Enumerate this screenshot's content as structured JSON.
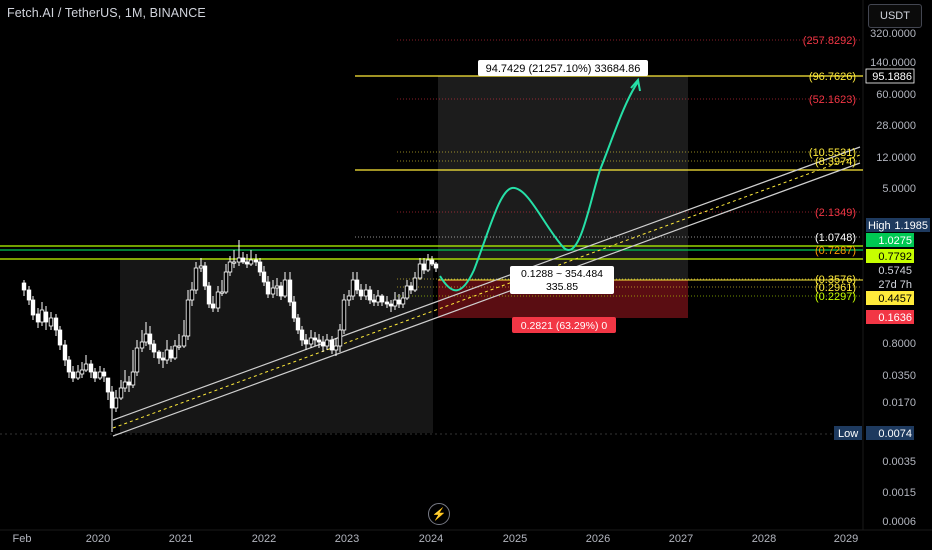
{
  "header": {
    "title": "Fetch.AI / TetherUS, 1M, BINANCE",
    "currency_button": "USDT"
  },
  "price_axis": {
    "ticks": [
      "320.0000",
      "140.0000",
      "60.0000",
      "28.0000",
      "12.0000",
      "5.0000",
      "0.8000",
      "0.0350",
      "0.0170",
      "0.0035",
      "0.0015",
      "0.0006"
    ],
    "labels": [
      {
        "text": "95.1886",
        "bg": "#000000",
        "fg": "#ffffff",
        "border": "#ffffff"
      },
      {
        "text": "High",
        "bg": "#1e3a5f",
        "fg": "#ffffff"
      },
      {
        "text": "1.1985",
        "bg": "#1e3a5f",
        "fg": "#ffffff"
      },
      {
        "text": "1.0275",
        "bg": "#00c853",
        "fg": "#ffffff"
      },
      {
        "text": "0.7792",
        "bg": "#c6ff00",
        "fg": "#000000"
      },
      {
        "text": "0.5745",
        "bg": "#000000",
        "fg": "#d1d4dc"
      },
      {
        "text": "27d 7h",
        "bg": "#000000",
        "fg": "#d1d4dc"
      },
      {
        "text": "0.4457",
        "bg": "#ffeb3b",
        "fg": "#000000"
      },
      {
        "text": "0.1636",
        "bg": "#f23645",
        "fg": "#ffffff"
      },
      {
        "text": "Low",
        "bg": "#1e3a5f",
        "fg": "#ffffff"
      },
      {
        "text": "0.0074",
        "bg": "#1e3a5f",
        "fg": "#ffffff"
      }
    ]
  },
  "time_axis": {
    "ticks": [
      "Feb",
      "2020",
      "2021",
      "2022",
      "2023",
      "2024",
      "2025",
      "2026",
      "2027",
      "2028",
      "2029"
    ]
  },
  "fib_levels": [
    {
      "text": "(257.8292)",
      "color": "#f23645"
    },
    {
      "text": "(96.7626)",
      "color": "#ffeb3b"
    },
    {
      "text": "(52.1623)",
      "color": "#f23645"
    },
    {
      "text": "(10.5531)",
      "color": "#ffeb3b"
    },
    {
      "text": "(8.3974)",
      "color": "#ffeb3b"
    },
    {
      "text": "(2.1349)",
      "color": "#f23645"
    },
    {
      "text": "(1.0748)",
      "color": "#ffffff"
    },
    {
      "text": "(0.7287)",
      "color": "#ff9800"
    },
    {
      "text": "(0.3576)",
      "color": "#ffeb3b"
    },
    {
      "text": "(0.2961)",
      "color": "#ffeb3b"
    },
    {
      "text": "(0.2297)",
      "color": "#c6ff00"
    }
  ],
  "position_tool": {
    "target_label": "94.7429 (21257.10%) 33684.86",
    "entry_label_line1": "0.1288 ~ 354.484",
    "entry_label_line2": "335.85",
    "stop_label": "0.2821 (63.29%) 0"
  },
  "colors": {
    "background": "#000000",
    "candle_up": "#ffffff",
    "candle_down": "#ffffff",
    "channel": "#cfcfcf",
    "projection": "#26e0a7",
    "profit_zone": "#1c1c1c",
    "loss_zone": "#6b0f14"
  }
}
